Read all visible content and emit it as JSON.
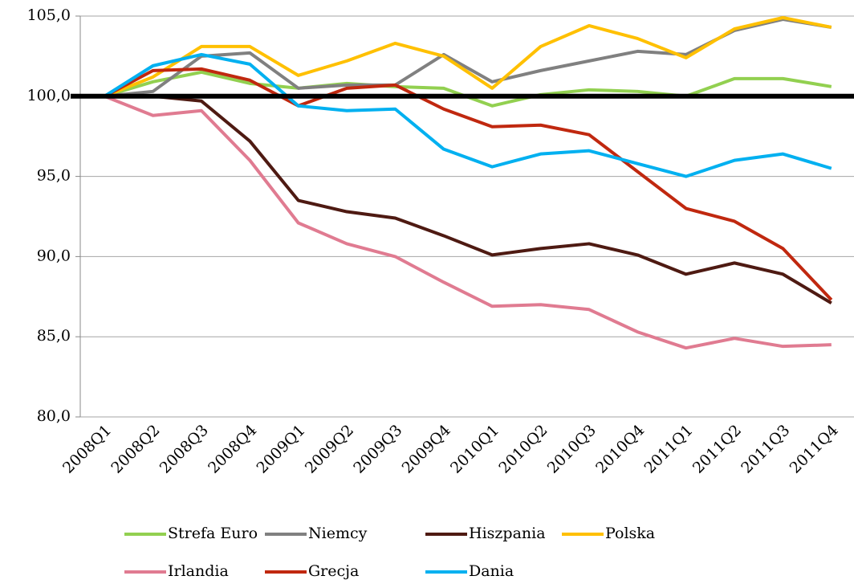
{
  "chart_data": {
    "type": "line",
    "categories": [
      "2008Q1",
      "2008Q2",
      "2008Q3",
      "2008Q4",
      "2009Q1",
      "2009Q2",
      "2009Q3",
      "2009Q4",
      "2010Q1",
      "2010Q2",
      "2010Q3",
      "2010Q4",
      "2011Q1",
      "2011Q2",
      "2011Q3",
      "2011Q4"
    ],
    "series": [
      {
        "name": "Strefa Euro",
        "color": "#92d050",
        "values": [
          100,
          100.9,
          101.5,
          100.8,
          100.5,
          100.8,
          100.6,
          100.5,
          99.4,
          100.1,
          100.4,
          100.3,
          100.0,
          101.1,
          101.1,
          100.6
        ]
      },
      {
        "name": "Niemcy",
        "color": "#808080",
        "values": [
          100,
          100.3,
          102.5,
          102.7,
          100.5,
          100.7,
          100.7,
          102.6,
          100.9,
          101.6,
          102.2,
          102.8,
          102.6,
          104.1,
          104.8,
          104.3
        ]
      },
      {
        "name": "Hiszpania",
        "color": "#4e1a12",
        "values": [
          100,
          100.0,
          99.7,
          97.2,
          93.5,
          92.8,
          92.4,
          91.3,
          90.1,
          90.5,
          90.8,
          90.1,
          88.9,
          89.6,
          88.9,
          87.1
        ]
      },
      {
        "name": "Polska",
        "color": "#ffc000",
        "values": [
          100,
          101.2,
          103.1,
          103.1,
          101.3,
          102.2,
          103.3,
          102.5,
          100.5,
          103.1,
          104.4,
          103.6,
          102.4,
          104.2,
          104.9,
          104.3
        ]
      },
      {
        "name": "Irlandia",
        "color": "#e07b91",
        "values": [
          100,
          98.8,
          99.1,
          96.0,
          92.1,
          90.8,
          90.0,
          88.4,
          86.9,
          87.0,
          86.7,
          85.3,
          84.3,
          84.9,
          84.4,
          84.5
        ]
      },
      {
        "name": "Grecja",
        "color": "#c0280f",
        "values": [
          100,
          101.6,
          101.7,
          101.0,
          99.4,
          100.5,
          100.7,
          99.2,
          98.1,
          98.2,
          97.6,
          95.3,
          93.0,
          92.2,
          90.5,
          87.3
        ]
      },
      {
        "name": "Dania",
        "color": "#00b0f0",
        "values": [
          100,
          101.9,
          102.6,
          102.0,
          99.4,
          99.1,
          99.2,
          96.7,
          95.6,
          96.4,
          96.6,
          95.8,
          95.0,
          96.0,
          96.4,
          95.5
        ]
      }
    ],
    "ylim": [
      80,
      105
    ],
    "yticks": [
      {
        "value": 80,
        "label": "80,0"
      },
      {
        "value": 85,
        "label": "85,0"
      },
      {
        "value": 90,
        "label": "90,0"
      },
      {
        "value": 95,
        "label": "95,0"
      },
      {
        "value": 100,
        "label": "100,0"
      },
      {
        "value": 105,
        "label": "105,0"
      }
    ],
    "grid": true,
    "reference_line": 100,
    "legend": "bottom"
  }
}
